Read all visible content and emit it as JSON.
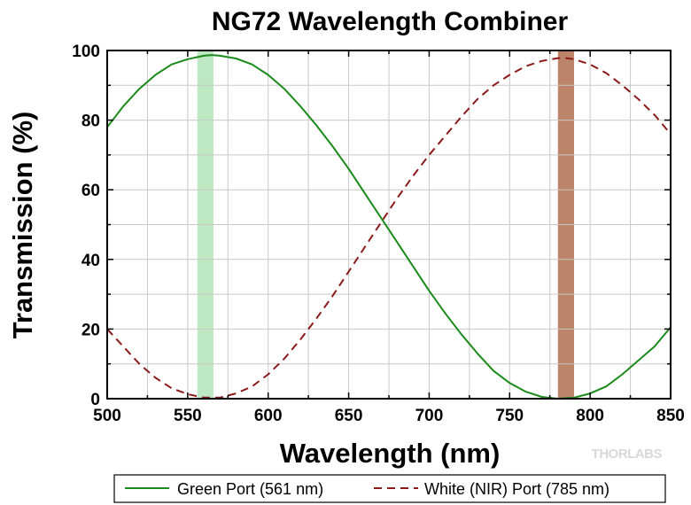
{
  "chart_data": {
    "type": "line",
    "title": "NG72 Wavelength Combiner",
    "xlabel": "Wavelength (nm)",
    "ylabel": "Transmission (%)",
    "xlim": [
      500,
      850
    ],
    "ylim": [
      0,
      100
    ],
    "x_ticks": [
      500,
      550,
      600,
      650,
      700,
      750,
      800,
      850
    ],
    "y_ticks": [
      0,
      20,
      40,
      60,
      80,
      100
    ],
    "grid": true,
    "legend_position": "bottom",
    "brand": "THORLABS",
    "bands": [
      {
        "from": 556,
        "to": 566,
        "color": "#bde8c1"
      },
      {
        "from": 780,
        "to": 790,
        "color": "#bc8468"
      }
    ],
    "series": [
      {
        "name": "Green Port (561 nm)",
        "color": "#1a8a1a",
        "style": "solid",
        "x": [
          500,
          510,
          520,
          530,
          540,
          550,
          560,
          565,
          570,
          580,
          590,
          600,
          610,
          620,
          630,
          640,
          650,
          660,
          670,
          680,
          690,
          700,
          710,
          720,
          730,
          740,
          750,
          760,
          770,
          780,
          790,
          800,
          810,
          820,
          830,
          840,
          850
        ],
        "y": [
          78,
          84,
          89,
          93,
          96,
          97.5,
          98.5,
          98.7,
          98.5,
          97.7,
          96,
          93,
          89,
          84,
          78.5,
          72.5,
          66,
          59,
          52,
          45,
          38,
          31,
          24.5,
          18.5,
          13,
          8,
          4.5,
          2,
          0.5,
          0,
          0.3,
          1.5,
          3.5,
          7,
          11,
          15,
          20.5
        ]
      },
      {
        "name": "White (NIR) Port (785 nm)",
        "color": "#8b1a1a",
        "style": "dashed",
        "x": [
          500,
          510,
          520,
          530,
          540,
          550,
          560,
          570,
          580,
          590,
          600,
          610,
          620,
          630,
          640,
          650,
          660,
          670,
          680,
          690,
          700,
          710,
          720,
          730,
          740,
          750,
          760,
          770,
          780,
          785,
          790,
          800,
          810,
          820,
          830,
          840,
          850
        ],
        "y": [
          20,
          15,
          10,
          6,
          3,
          1.3,
          0.3,
          0.3,
          1.5,
          3.5,
          7,
          11.5,
          17,
          23,
          29.5,
          36.5,
          43.5,
          50.5,
          57.5,
          64,
          70,
          75.5,
          81,
          86,
          90,
          93,
          95.5,
          97,
          97.8,
          97.8,
          97.5,
          96,
          93.5,
          90,
          86,
          81.5,
          76
        ]
      }
    ]
  }
}
